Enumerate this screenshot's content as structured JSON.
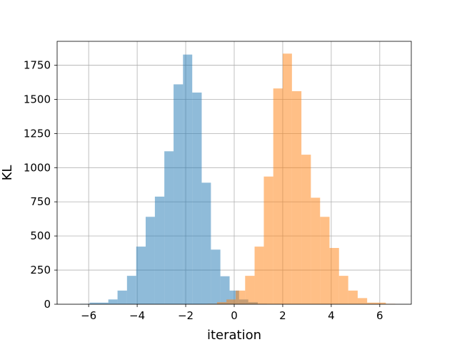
{
  "chart_data": {
    "type": "bar",
    "title": "",
    "xlabel": "iteration",
    "ylabel": "KL",
    "xlim": [
      -7.3,
      7.3
    ],
    "ylim": [
      0,
      1925
    ],
    "grid": true,
    "legend": null,
    "x_ticks": [
      -6,
      -4,
      -2,
      0,
      2,
      4,
      6
    ],
    "x_tick_labels": [
      "−6",
      "−4",
      "−2",
      "0",
      "2",
      "4",
      "6"
    ],
    "y_ticks": [
      0,
      250,
      500,
      750,
      1000,
      1250,
      1500,
      1750
    ],
    "y_tick_labels": [
      "0",
      "250",
      "500",
      "750",
      "1000",
      "1250",
      "1500",
      "1750"
    ],
    "series": [
      {
        "color": "#1f77b4",
        "opacity": 0.5,
        "bins": [
          {
            "x0": -6.35,
            "x1": -5.96,
            "count": 3
          },
          {
            "x0": -5.96,
            "x1": -5.58,
            "count": 12
          },
          {
            "x0": -5.58,
            "x1": -5.19,
            "count": 12
          },
          {
            "x0": -5.19,
            "x1": -4.81,
            "count": 35
          },
          {
            "x0": -4.81,
            "x1": -4.42,
            "count": 100
          },
          {
            "x0": -4.42,
            "x1": -4.04,
            "count": 208
          },
          {
            "x0": -4.04,
            "x1": -3.65,
            "count": 422
          },
          {
            "x0": -3.65,
            "x1": -3.27,
            "count": 640
          },
          {
            "x0": -3.27,
            "x1": -2.88,
            "count": 788
          },
          {
            "x0": -2.88,
            "x1": -2.5,
            "count": 1120
          },
          {
            "x0": -2.5,
            "x1": -2.11,
            "count": 1610
          },
          {
            "x0": -2.11,
            "x1": -1.73,
            "count": 1828
          },
          {
            "x0": -1.73,
            "x1": -1.34,
            "count": 1550
          },
          {
            "x0": -1.34,
            "x1": -0.96,
            "count": 890
          },
          {
            "x0": -0.96,
            "x1": -0.57,
            "count": 400
          },
          {
            "x0": -0.57,
            "x1": -0.19,
            "count": 205
          },
          {
            "x0": -0.19,
            "x1": 0.2,
            "count": 100
          },
          {
            "x0": 0.2,
            "x1": 0.58,
            "count": 35
          },
          {
            "x0": 0.58,
            "x1": 0.97,
            "count": 15
          },
          {
            "x0": 0.97,
            "x1": 1.35,
            "count": 3
          }
        ]
      },
      {
        "color": "#ff7f0e",
        "opacity": 0.5,
        "bins": [
          {
            "x0": -1.1,
            "x1": -0.71,
            "count": 3
          },
          {
            "x0": -0.71,
            "x1": -0.32,
            "count": 15
          },
          {
            "x0": -0.32,
            "x1": 0.06,
            "count": 35
          },
          {
            "x0": 0.06,
            "x1": 0.45,
            "count": 100
          },
          {
            "x0": 0.45,
            "x1": 0.84,
            "count": 208
          },
          {
            "x0": 0.84,
            "x1": 1.22,
            "count": 422
          },
          {
            "x0": 1.22,
            "x1": 1.61,
            "count": 935
          },
          {
            "x0": 1.61,
            "x1": 2.0,
            "count": 1580
          },
          {
            "x0": 2.0,
            "x1": 2.38,
            "count": 1835
          },
          {
            "x0": 2.38,
            "x1": 2.77,
            "count": 1560
          },
          {
            "x0": 2.77,
            "x1": 3.16,
            "count": 1095
          },
          {
            "x0": 3.16,
            "x1": 3.54,
            "count": 780
          },
          {
            "x0": 3.54,
            "x1": 3.93,
            "count": 640
          },
          {
            "x0": 3.93,
            "x1": 4.32,
            "count": 412
          },
          {
            "x0": 4.32,
            "x1": 4.7,
            "count": 208
          },
          {
            "x0": 4.7,
            "x1": 5.09,
            "count": 100
          },
          {
            "x0": 5.09,
            "x1": 5.48,
            "count": 45
          },
          {
            "x0": 5.48,
            "x1": 5.86,
            "count": 12
          },
          {
            "x0": 5.86,
            "x1": 6.25,
            "count": 12
          },
          {
            "x0": 6.25,
            "x1": 6.64,
            "count": 3
          }
        ]
      }
    ]
  }
}
